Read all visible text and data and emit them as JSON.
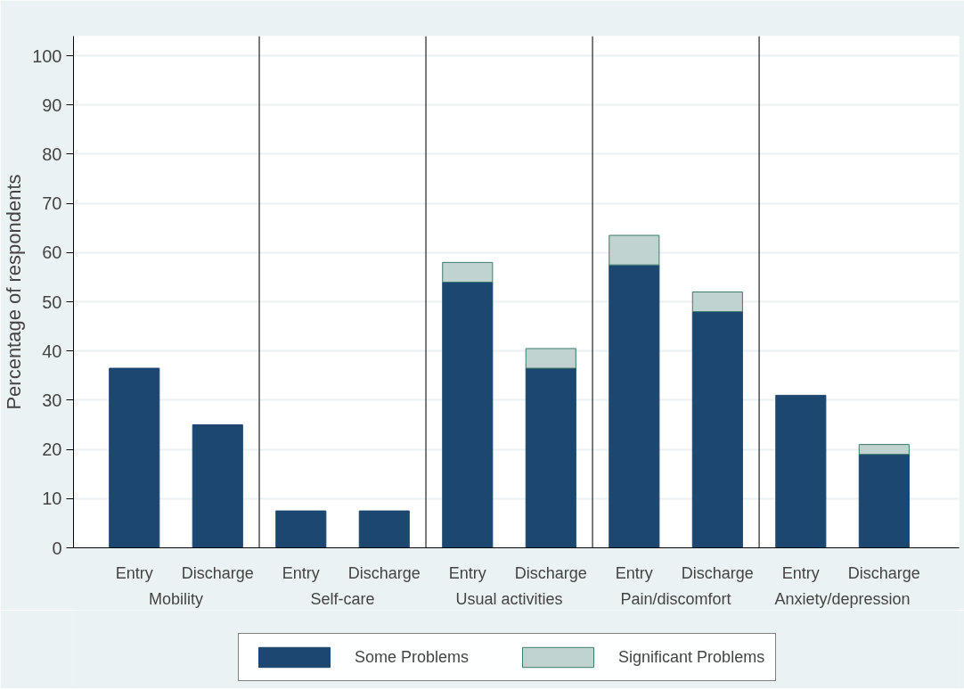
{
  "chart_data": {
    "type": "bar",
    "stacked": true,
    "ylabel": "Percentage of respondents",
    "categories": [
      "Entry",
      "Discharge",
      "Entry",
      "Discharge",
      "Entry",
      "Discharge",
      "Entry",
      "Discharge",
      "Entry",
      "Discharge"
    ],
    "series": [
      {
        "name": "Some Problems",
        "color": "#1c4770",
        "values": [
          36.5,
          25,
          7.5,
          7.5,
          54,
          36.5,
          57.5,
          48,
          31,
          19
        ]
      },
      {
        "name": "Significant Problems",
        "color": "#c0d3d0",
        "values": [
          0,
          0,
          0,
          0,
          4,
          4,
          6,
          4,
          0,
          2
        ]
      }
    ],
    "annotations": [
      "Mobility",
      "Self-care",
      "Usual activities",
      "Pain/discomfort",
      "Anxiety/depression"
    ],
    "ylim": [
      0,
      104
    ],
    "yticks": [
      0,
      10,
      20,
      30,
      40,
      50,
      60,
      70,
      80,
      90,
      100
    ],
    "grid": "y",
    "legend": "bottom"
  }
}
